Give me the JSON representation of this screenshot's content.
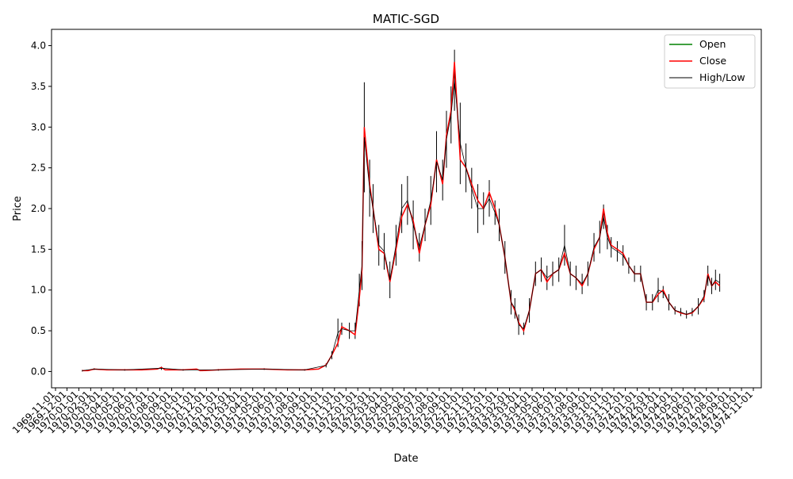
{
  "chart_data": {
    "type": "line",
    "title": "MATIC-SGD",
    "xlabel": "Date",
    "ylabel": "Price",
    "ylim": [
      -0.2,
      4.2
    ],
    "y_ticks": [
      "0.0",
      "0.5",
      "1.0",
      "1.5",
      "2.0",
      "2.5",
      "3.0",
      "3.5",
      "4.0"
    ],
    "y_tick_values": [
      0.0,
      0.5,
      1.0,
      1.5,
      2.0,
      2.5,
      3.0,
      3.5,
      4.0
    ],
    "x_ticks": [
      "1969-11-01",
      "1969-12-01",
      "1970-01-01",
      "1970-02-01",
      "1970-03-01",
      "1970-04-01",
      "1970-05-01",
      "1970-06-01",
      "1970-07-01",
      "1970-08-01",
      "1970-09-01",
      "1970-10-01",
      "1970-11-01",
      "1970-12-01",
      "1971-01-01",
      "1971-02-01",
      "1971-03-01",
      "1971-04-01",
      "1971-05-01",
      "1971-06-01",
      "1971-07-01",
      "1971-08-01",
      "1971-09-01",
      "1971-10-01",
      "1971-11-01",
      "1971-12-01",
      "1972-01-01",
      "1972-02-01",
      "1972-03-01",
      "1972-04-01",
      "1972-05-01",
      "1972-06-01",
      "1972-07-01",
      "1972-08-01",
      "1972-09-01",
      "1972-10-01",
      "1972-11-01",
      "1972-12-01",
      "1973-01-01",
      "1973-02-01",
      "1973-03-01",
      "1973-04-01",
      "1973-05-01",
      "1973-06-01",
      "1973-07-01",
      "1973-08-01",
      "1973-09-01",
      "1973-10-01",
      "1973-11-01",
      "1973-12-01",
      "1974-01-01",
      "1974-02-01",
      "1974-03-01",
      "1974-04-01",
      "1974-05-01",
      "1974-06-01",
      "1974-07-01",
      "1974-08-01",
      "1974-09-01",
      "1974-10-01",
      "1974-11-01"
    ],
    "legend_position": "top-right",
    "grid": false,
    "series": [
      {
        "name": "Open",
        "color": "#008000",
        "x": [],
        "values": []
      },
      {
        "name": "Close",
        "color": "#ff0000",
        "x": [
          "1970-01-10",
          "1970-01-25",
          "1970-02-10",
          "1970-03-15",
          "1970-05-01",
          "1970-06-15",
          "1970-07-25",
          "1970-08-05",
          "1970-08-15",
          "1970-10-01",
          "1970-11-05",
          "1970-11-15",
          "1971-01-01",
          "1971-03-01",
          "1971-05-01",
          "1971-07-01",
          "1971-08-15",
          "1971-09-20",
          "1971-10-10",
          "1971-10-25",
          "1971-11-10",
          "1971-11-20",
          "1971-12-10",
          "1971-12-25",
          "1972-01-05",
          "1972-01-12",
          "1972-01-18",
          "1972-02-01",
          "1972-02-10",
          "1972-02-25",
          "1972-03-10",
          "1972-03-25",
          "1972-04-10",
          "1972-04-25",
          "1972-05-10",
          "1972-05-25",
          "1972-06-10",
          "1972-06-25",
          "1972-07-10",
          "1972-07-25",
          "1972-08-10",
          "1972-08-20",
          "1972-09-01",
          "1972-09-10",
          "1972-09-25",
          "1972-10-10",
          "1972-10-25",
          "1972-11-10",
          "1972-11-25",
          "1972-12-10",
          "1972-12-25",
          "1973-01-05",
          "1973-01-20",
          "1973-02-05",
          "1973-02-15",
          "1973-02-25",
          "1973-03-10",
          "1973-03-25",
          "1973-04-10",
          "1973-04-25",
          "1973-05-10",
          "1973-05-25",
          "1973-06-10",
          "1973-06-25",
          "1973-07-10",
          "1973-07-25",
          "1973-08-10",
          "1973-08-25",
          "1973-09-10",
          "1973-09-25",
          "1973-10-05",
          "1973-10-15",
          "1973-10-25",
          "1973-11-10",
          "1973-11-25",
          "1973-12-10",
          "1973-12-25",
          "1974-01-10",
          "1974-01-25",
          "1974-02-10",
          "1974-02-25",
          "1974-03-10",
          "1974-03-25",
          "1974-04-10",
          "1974-04-25",
          "1974-05-10",
          "1974-05-25",
          "1974-06-10",
          "1974-06-25",
          "1974-07-05",
          "1974-07-15",
          "1974-07-25",
          "1974-08-05"
        ],
        "values": [
          0.01,
          0.01,
          0.03,
          0.02,
          0.02,
          0.02,
          0.03,
          0.05,
          0.02,
          0.02,
          0.03,
          0.01,
          0.02,
          0.03,
          0.03,
          0.02,
          0.02,
          0.03,
          0.08,
          0.2,
          0.35,
          0.55,
          0.5,
          0.45,
          0.9,
          1.25,
          3.0,
          2.3,
          2.0,
          1.5,
          1.45,
          1.1,
          1.5,
          1.9,
          2.05,
          1.85,
          1.45,
          1.8,
          2.05,
          2.6,
          2.3,
          2.9,
          3.2,
          3.8,
          2.6,
          2.5,
          2.3,
          2.1,
          2.0,
          2.2,
          2.0,
          1.8,
          1.4,
          0.85,
          0.75,
          0.6,
          0.5,
          0.75,
          1.2,
          1.25,
          1.1,
          1.2,
          1.25,
          1.45,
          1.2,
          1.15,
          1.05,
          1.2,
          1.5,
          1.65,
          2.0,
          1.7,
          1.55,
          1.5,
          1.45,
          1.3,
          1.2,
          1.2,
          0.85,
          0.85,
          0.95,
          1.0,
          0.85,
          0.75,
          0.72,
          0.7,
          0.72,
          0.8,
          0.9,
          1.2,
          1.05,
          1.1,
          1.05
        ]
      },
      {
        "name": "High/Low",
        "color": "#000000",
        "x": [
          "1970-01-10",
          "1970-02-10",
          "1970-05-01",
          "1970-08-05",
          "1970-10-01",
          "1971-01-01",
          "1971-05-01",
          "1971-08-15",
          "1971-10-10",
          "1971-10-25",
          "1971-11-10",
          "1971-11-20",
          "1971-12-10",
          "1971-12-25",
          "1972-01-05",
          "1972-01-12",
          "1972-01-18",
          "1972-02-01",
          "1972-02-10",
          "1972-02-25",
          "1972-03-10",
          "1972-03-25",
          "1972-04-10",
          "1972-04-25",
          "1972-05-10",
          "1972-05-25",
          "1972-06-10",
          "1972-06-25",
          "1972-07-10",
          "1972-07-25",
          "1972-08-10",
          "1972-08-20",
          "1972-09-01",
          "1972-09-10",
          "1972-09-25",
          "1972-10-10",
          "1972-10-25",
          "1972-11-10",
          "1972-11-25",
          "1972-12-10",
          "1972-12-25",
          "1973-01-05",
          "1973-01-20",
          "1973-02-05",
          "1973-02-15",
          "1973-02-25",
          "1973-03-10",
          "1973-03-25",
          "1973-04-10",
          "1973-04-25",
          "1973-05-10",
          "1973-05-25",
          "1973-06-10",
          "1973-06-25",
          "1973-07-10",
          "1973-07-25",
          "1973-08-10",
          "1973-08-25",
          "1973-09-10",
          "1973-09-25",
          "1973-10-05",
          "1973-10-15",
          "1973-10-25",
          "1973-11-10",
          "1973-11-25",
          "1973-12-10",
          "1973-12-25",
          "1974-01-10",
          "1974-01-25",
          "1974-02-10",
          "1974-02-25",
          "1974-03-10",
          "1974-03-25",
          "1974-04-10",
          "1974-04-25",
          "1974-05-10",
          "1974-05-25",
          "1974-06-10",
          "1974-06-25",
          "1974-07-05",
          "1974-07-15",
          "1974-07-25",
          "1974-08-05"
        ],
        "high": [
          0.02,
          0.04,
          0.03,
          0.06,
          0.03,
          0.03,
          0.04,
          0.03,
          0.1,
          0.25,
          0.65,
          0.6,
          0.6,
          0.6,
          1.2,
          1.6,
          3.55,
          2.6,
          2.3,
          1.8,
          1.7,
          1.35,
          1.8,
          2.3,
          2.4,
          2.1,
          1.7,
          2.0,
          2.4,
          2.95,
          2.6,
          3.2,
          3.5,
          3.95,
          3.3,
          2.8,
          2.5,
          2.3,
          2.2,
          2.35,
          2.1,
          2.0,
          1.6,
          1.0,
          0.9,
          0.7,
          0.6,
          0.9,
          1.35,
          1.4,
          1.3,
          1.35,
          1.4,
          1.8,
          1.35,
          1.3,
          1.2,
          1.35,
          1.7,
          1.85,
          2.05,
          1.8,
          1.65,
          1.6,
          1.55,
          1.4,
          1.3,
          1.3,
          0.95,
          0.95,
          1.15,
          1.05,
          0.95,
          0.8,
          0.78,
          0.75,
          0.78,
          0.9,
          1.0,
          1.3,
          1.15,
          1.25,
          1.2
        ],
        "low": [
          0.0,
          0.02,
          0.01,
          0.02,
          0.01,
          0.01,
          0.02,
          0.01,
          0.05,
          0.15,
          0.3,
          0.45,
          0.4,
          0.4,
          0.8,
          1.0,
          2.2,
          1.9,
          1.7,
          1.3,
          1.25,
          0.9,
          1.3,
          1.7,
          1.8,
          1.5,
          1.35,
          1.6,
          1.8,
          2.2,
          2.1,
          2.5,
          2.8,
          3.2,
          2.3,
          2.2,
          2.0,
          1.7,
          1.8,
          1.9,
          1.8,
          1.6,
          1.2,
          0.7,
          0.65,
          0.45,
          0.45,
          0.6,
          1.05,
          1.1,
          1.0,
          1.05,
          1.1,
          1.3,
          1.05,
          1.0,
          0.95,
          1.05,
          1.35,
          1.45,
          1.75,
          1.5,
          1.4,
          1.35,
          1.3,
          1.2,
          1.1,
          1.1,
          0.75,
          0.75,
          0.85,
          0.9,
          0.75,
          0.7,
          0.68,
          0.65,
          0.68,
          0.7,
          0.85,
          1.05,
          0.95,
          1.0,
          0.98
        ]
      }
    ]
  }
}
